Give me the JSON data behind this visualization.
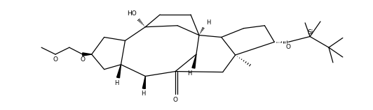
{
  "figsize": [
    5.32,
    1.58
  ],
  "dpi": 100,
  "bg_color": "white",
  "line_color": "black",
  "lw": 0.9,
  "font_size": 6.5,
  "xlim": [
    0,
    532
  ],
  "ylim": [
    0,
    158
  ]
}
